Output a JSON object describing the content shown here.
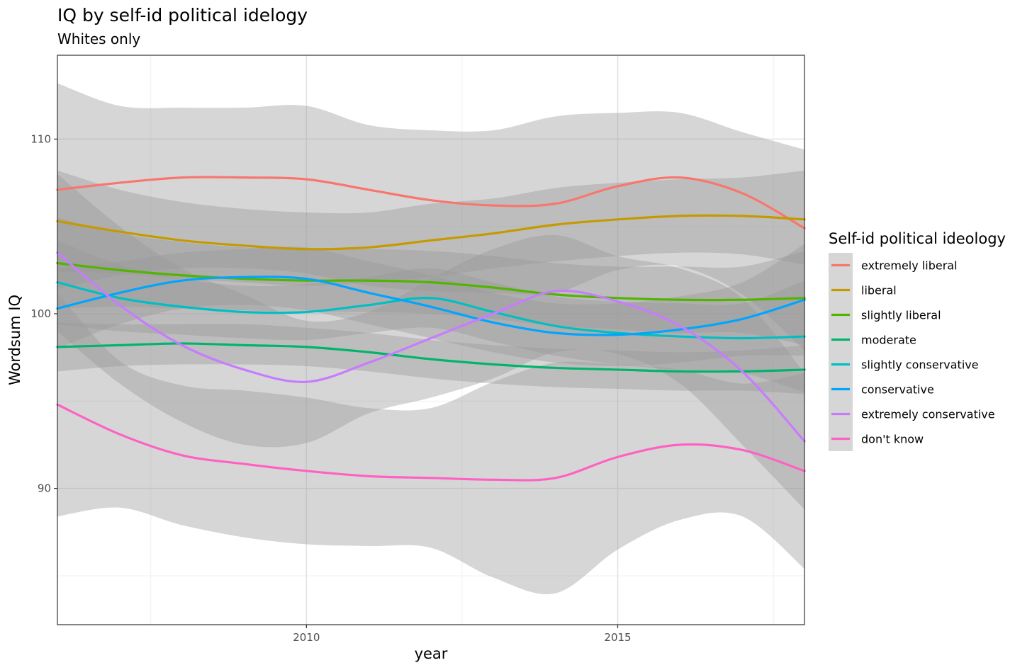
{
  "chart_data": {
    "type": "line",
    "title": "IQ by self-id political idelogy",
    "subtitle": "Whites only",
    "xlabel": "year",
    "ylabel": "Wordsum IQ",
    "xlim": [
      2006.0,
      2018.0
    ],
    "ylim": [
      82.2,
      114.8
    ],
    "x_ticks": [
      2010,
      2015
    ],
    "y_ticks": [
      90,
      100,
      110
    ],
    "grid": true,
    "confidence_bands": true,
    "band_color": "#999999",
    "legend": {
      "title": "Self-id political ideology",
      "position": "right"
    },
    "series": [
      {
        "name": "extremely liberal",
        "color": "#F8766D",
        "x": [
          2006.0,
          2007.0,
          2008.0,
          2009.0,
          2010.0,
          2011.0,
          2012.0,
          2013.0,
          2014.0,
          2015.0,
          2016.0,
          2017.0,
          2018.0
        ],
        "y": [
          107.1,
          107.5,
          107.8,
          107.8,
          107.7,
          107.1,
          106.5,
          106.2,
          106.3,
          107.3,
          107.8,
          106.9,
          104.9
        ],
        "lower": [
          101.4,
          102.2,
          102.6,
          102.6,
          102.3,
          101.6,
          101.3,
          101.2,
          101.2,
          102.5,
          102.7,
          101.1,
          97.9
        ],
        "upper": [
          113.2,
          111.9,
          111.8,
          111.8,
          111.9,
          110.8,
          110.5,
          110.5,
          111.3,
          111.5,
          111.5,
          110.4,
          109.4
        ]
      },
      {
        "name": "liberal",
        "color": "#C49A00",
        "x": [
          2006.0,
          2007.0,
          2008.0,
          2009.0,
          2010.0,
          2011.0,
          2012.0,
          2013.0,
          2014.0,
          2015.0,
          2016.0,
          2017.0,
          2018.0
        ],
        "y": [
          105.3,
          104.7,
          104.2,
          103.9,
          103.7,
          103.8,
          104.2,
          104.6,
          105.1,
          105.4,
          105.6,
          105.6,
          105.4
        ],
        "lower": [
          102.4,
          102.3,
          102.0,
          101.8,
          101.6,
          101.8,
          102.1,
          102.6,
          103.0,
          103.3,
          103.5,
          103.4,
          102.8
        ],
        "upper": [
          108.2,
          107.1,
          106.4,
          106.0,
          105.8,
          105.8,
          106.3,
          106.6,
          107.2,
          107.5,
          107.7,
          107.8,
          108.2
        ]
      },
      {
        "name": "slightly liberal",
        "color": "#53B400",
        "x": [
          2006.0,
          2007.0,
          2008.0,
          2009.0,
          2010.0,
          2011.0,
          2012.0,
          2013.0,
          2014.0,
          2015.0,
          2016.0,
          2017.0,
          2018.0
        ],
        "y": [
          102.9,
          102.5,
          102.2,
          102.0,
          101.9,
          101.9,
          101.8,
          101.5,
          101.1,
          100.9,
          100.8,
          100.8,
          100.9
        ],
        "lower": [
          100.3,
          100.4,
          100.3,
          100.2,
          100.1,
          100.1,
          100.0,
          99.7,
          99.3,
          99.1,
          98.9,
          98.9,
          98.2
        ],
        "upper": [
          105.5,
          104.6,
          104.1,
          103.8,
          103.7,
          103.7,
          103.6,
          103.3,
          102.9,
          102.7,
          102.7,
          102.7,
          103.6
        ]
      },
      {
        "name": "moderate",
        "color": "#00B46E",
        "x": [
          2006.0,
          2007.0,
          2008.0,
          2009.0,
          2010.0,
          2011.0,
          2012.0,
          2013.0,
          2014.0,
          2015.0,
          2016.0,
          2017.0,
          2018.0
        ],
        "y": [
          98.1,
          98.2,
          98.3,
          98.2,
          98.1,
          97.8,
          97.4,
          97.1,
          96.9,
          96.8,
          96.7,
          96.7,
          96.8
        ],
        "lower": [
          96.7,
          97.0,
          97.1,
          97.1,
          97.0,
          96.7,
          96.3,
          96.0,
          95.8,
          95.7,
          95.6,
          95.6,
          95.4
        ],
        "upper": [
          99.5,
          99.4,
          99.4,
          99.4,
          99.2,
          98.9,
          98.5,
          98.2,
          98.0,
          97.9,
          97.8,
          97.9,
          98.2
        ]
      },
      {
        "name": "slightly conservative",
        "color": "#00BFC4",
        "x": [
          2006.0,
          2007.0,
          2008.0,
          2009.0,
          2010.0,
          2011.0,
          2012.0,
          2013.0,
          2014.0,
          2015.0,
          2016.0,
          2017.0,
          2018.0
        ],
        "y": [
          101.8,
          100.9,
          100.4,
          100.1,
          100.1,
          100.5,
          100.9,
          100.1,
          99.3,
          98.9,
          98.7,
          98.6,
          98.7
        ],
        "lower": [
          99.4,
          99.0,
          98.8,
          98.6,
          98.5,
          98.9,
          99.2,
          98.4,
          97.6,
          97.1,
          96.8,
          96.6,
          95.5
        ],
        "upper": [
          104.2,
          102.8,
          102.0,
          101.6,
          101.7,
          102.1,
          102.6,
          101.8,
          101.0,
          100.7,
          100.6,
          100.6,
          101.9
        ]
      },
      {
        "name": "conservative",
        "color": "#00A5FF",
        "x": [
          2006.0,
          2007.0,
          2008.0,
          2009.0,
          2010.0,
          2011.0,
          2012.0,
          2013.0,
          2014.0,
          2015.0,
          2016.0,
          2017.0,
          2018.0
        ],
        "y": [
          100.3,
          101.2,
          101.9,
          102.1,
          102.0,
          101.2,
          100.4,
          99.5,
          98.9,
          98.8,
          99.1,
          99.7,
          100.8
        ],
        "lower": [
          98.0,
          99.4,
          100.3,
          100.5,
          100.2,
          99.4,
          98.6,
          97.8,
          97.2,
          97.0,
          97.2,
          97.6,
          97.6
        ],
        "upper": [
          102.6,
          103.0,
          103.5,
          103.7,
          103.8,
          103.0,
          102.2,
          101.2,
          100.6,
          100.6,
          101.0,
          101.8,
          104.0
        ]
      },
      {
        "name": "extremely conservative",
        "color": "#C77CFF",
        "x": [
          2006.0,
          2007.0,
          2008.0,
          2009.0,
          2010.0,
          2011.0,
          2012.0,
          2013.0,
          2014.0,
          2015.0,
          2016.0,
          2017.0,
          2018.0
        ],
        "y": [
          103.5,
          100.5,
          98.2,
          96.8,
          96.1,
          97.2,
          98.6,
          100.0,
          101.3,
          100.7,
          99.3,
          96.7,
          92.7
        ],
        "lower": [
          99.0,
          96.0,
          93.8,
          92.5,
          92.6,
          94.3,
          95.2,
          96.3,
          97.8,
          97.7,
          96.0,
          92.5,
          88.8
        ],
        "upper": [
          108.0,
          105.0,
          102.6,
          101.1,
          99.6,
          100.1,
          102.0,
          103.7,
          104.5,
          103.3,
          102.6,
          100.9,
          96.6
        ]
      },
      {
        "name": "don't know",
        "color": "#FF61C3",
        "x": [
          2006.0,
          2007.0,
          2008.0,
          2009.0,
          2010.0,
          2011.0,
          2012.0,
          2013.0,
          2014.0,
          2015.0,
          2016.0,
          2017.0,
          2018.0
        ],
        "y": [
          94.8,
          93.1,
          91.9,
          91.4,
          91.0,
          90.7,
          90.6,
          90.5,
          90.6,
          91.8,
          92.5,
          92.2,
          91.0
        ],
        "lower": [
          88.4,
          88.9,
          87.9,
          87.2,
          86.8,
          86.7,
          86.6,
          84.9,
          84.0,
          86.5,
          88.2,
          88.4,
          85.4
        ],
        "upper": [
          101.2,
          97.3,
          95.9,
          95.6,
          95.2,
          94.6,
          94.6,
          96.1,
          97.2,
          97.1,
          96.8,
          96.0,
          96.6
        ]
      }
    ]
  }
}
